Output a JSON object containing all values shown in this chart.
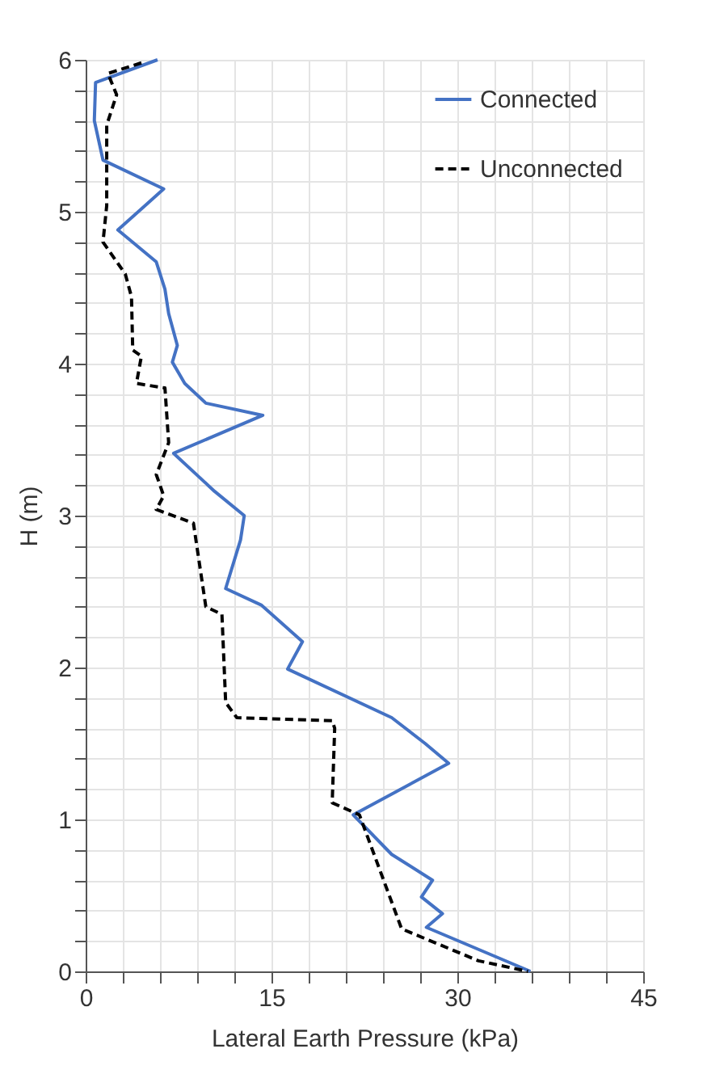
{
  "chart_data": {
    "type": "line",
    "xlabel": "Lateral Earth Pressure (kPa)",
    "ylabel": "H (m)",
    "xlim": [
      0,
      45
    ],
    "ylim": [
      0,
      6
    ],
    "xticks": [
      0,
      {
        "value": 3,
        "label": null
      },
      {
        "value": 6,
        "label": null
      },
      {
        "value": 9,
        "label": null
      },
      {
        "value": 12,
        "label": null
      },
      15,
      {
        "value": 18,
        "label": null
      },
      {
        "value": 21,
        "label": null
      },
      {
        "value": 24,
        "label": null
      },
      {
        "value": 27,
        "label": null
      },
      30,
      {
        "value": 33,
        "label": null
      },
      {
        "value": 36,
        "label": null
      },
      {
        "value": 39,
        "label": null
      },
      {
        "value": 42,
        "label": null
      },
      45
    ],
    "yticks": [
      0,
      {
        "value": 0.2,
        "label": null
      },
      {
        "value": 0.4,
        "label": null
      },
      {
        "value": 0.6,
        "label": null
      },
      {
        "value": 0.8,
        "label": null
      },
      1,
      {
        "value": 1.2,
        "label": null
      },
      {
        "value": 1.4,
        "label": null
      },
      {
        "value": 1.6,
        "label": null
      },
      {
        "value": 1.8,
        "label": null
      },
      2,
      {
        "value": 2.2,
        "label": null
      },
      {
        "value": 2.4,
        "label": null
      },
      {
        "value": 2.6,
        "label": null
      },
      {
        "value": 2.8,
        "label": null
      },
      3,
      {
        "value": 3.2,
        "label": null
      },
      {
        "value": 3.4,
        "label": null
      },
      {
        "value": 3.6,
        "label": null
      },
      {
        "value": 3.8,
        "label": null
      },
      4,
      {
        "value": 4.2,
        "label": null
      },
      {
        "value": 4.4,
        "label": null
      },
      {
        "value": 4.6,
        "label": null
      },
      {
        "value": 4.8,
        "label": null
      },
      5,
      {
        "value": 5.2,
        "label": null
      },
      {
        "value": 5.4,
        "label": null
      },
      {
        "value": 5.6,
        "label": null
      },
      {
        "value": 5.8,
        "label": null
      },
      6
    ],
    "grid": true,
    "legend": "top right",
    "marker": "none",
    "series": [
      {
        "name": "Connected",
        "color": "#4472c4",
        "line_style": "solid",
        "x": [
          5.8,
          0.8,
          0.7,
          1.4,
          6.3,
          2.6,
          5.7,
          6.4,
          6.7,
          7.4,
          7.0,
          8.0,
          9.7,
          14.3,
          7.1,
          10.4,
          12.8,
          12.5,
          11.3,
          14.2,
          17.5,
          16.3,
          24.7,
          27.4,
          29.3,
          21.6,
          24.7,
          28.0,
          27.1,
          28.8,
          27.5,
          35.9
        ],
        "values": [
          6,
          5.85,
          5.6,
          5.34,
          5.15,
          4.88,
          4.67,
          4.49,
          4.33,
          4.12,
          4.01,
          3.87,
          3.74,
          3.66,
          3.41,
          3.16,
          3.0,
          2.84,
          2.52,
          2.41,
          2.17,
          1.99,
          1.67,
          1.5,
          1.37,
          1.03,
          0.77,
          0.6,
          0.49,
          0.38,
          0.29,
          0
        ]
      },
      {
        "name": "Unconnected",
        "color": "#000000",
        "line_style": "dashed",
        "x": [
          4.5,
          1.8,
          2.5,
          1.7,
          1.7,
          1.4,
          3.2,
          3.7,
          3.8,
          4.5,
          4.1,
          6.4,
          6.7,
          5.7,
          6.3,
          5.7,
          8.7,
          9.7,
          11.0,
          11.3,
          12.2,
          19.9,
          20.1,
          19.9,
          22.1,
          25.5,
          31.7,
          35.7
        ],
        "values": [
          5.98,
          5.91,
          5.77,
          5.57,
          5.04,
          4.8,
          4.59,
          4.44,
          4.09,
          4.05,
          3.87,
          3.84,
          3.48,
          3.27,
          3.13,
          3.04,
          2.95,
          2.4,
          2.35,
          1.77,
          1.67,
          1.65,
          1.6,
          1.11,
          1.03,
          0.28,
          0.07,
          0
        ]
      }
    ]
  }
}
